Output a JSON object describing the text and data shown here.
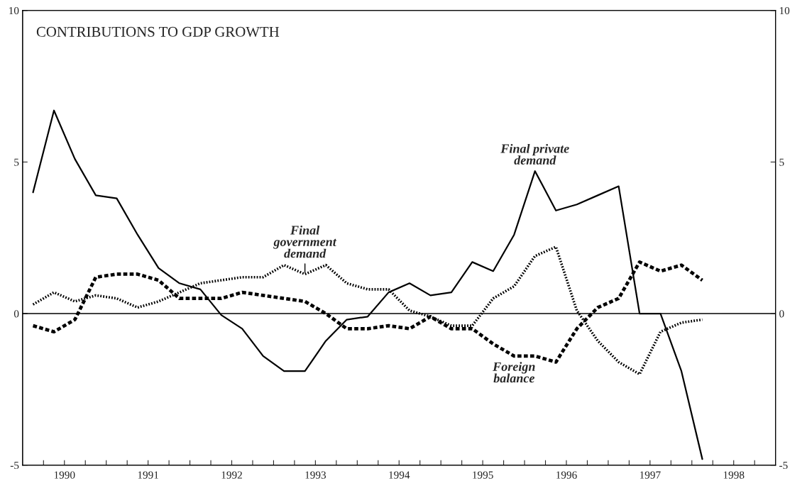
{
  "chart_data": {
    "type": "line",
    "title": "CONTRIBUTIONS TO GDP GROWTH",
    "x": [
      1990.125,
      1990.375,
      1990.625,
      1990.875,
      1991.125,
      1991.375,
      1991.625,
      1991.875,
      1992.125,
      1992.375,
      1992.625,
      1992.875,
      1993.125,
      1993.375,
      1993.625,
      1993.875,
      1994.125,
      1994.375,
      1994.625,
      1994.875,
      1995.125,
      1995.375,
      1995.625,
      1995.875,
      1996.125,
      1996.375,
      1996.625,
      1996.875,
      1997.125,
      1997.375,
      1997.625,
      1997.875,
      1998.125
    ],
    "series": [
      {
        "color": "#000000",
        "line_style": "solid",
        "values": [
          4.0,
          6.7,
          5.1,
          3.9,
          3.8,
          2.6,
          1.5,
          1.0,
          0.8,
          -0.05,
          -0.5,
          -1.4,
          -1.9,
          -1.9,
          -0.9,
          -0.2,
          -0.1,
          0.7,
          1.0,
          0.6,
          0.7,
          1.7,
          1.4,
          2.6,
          4.7,
          3.4,
          3.6,
          3.9,
          4.2,
          0.0,
          0.0,
          -1.9,
          -4.8
        ]
      },
      {
        "color": "#000000",
        "line_style": "dotted",
        "values": [
          0.3,
          0.7,
          0.4,
          0.6,
          0.5,
          0.2,
          0.4,
          0.7,
          1.0,
          1.1,
          1.2,
          1.2,
          1.6,
          1.3,
          1.6,
          1.0,
          0.8,
          0.8,
          0.1,
          -0.1,
          -0.4,
          -0.4,
          0.5,
          0.9,
          1.9,
          2.2,
          0.1,
          -0.9,
          -1.6,
          -2.0,
          -0.6,
          -0.3,
          -0.2
        ]
      },
      {
        "color": "#000000",
        "line_style": "dashed",
        "values": [
          -0.4,
          -0.6,
          -0.2,
          1.2,
          1.3,
          1.3,
          1.1,
          0.5,
          0.5,
          0.5,
          0.7,
          0.6,
          0.5,
          0.4,
          0.0,
          -0.5,
          -0.5,
          -0.4,
          -0.5,
          -0.1,
          -0.5,
          -0.5,
          -1.0,
          -1.4,
          -1.4,
          -1.6,
          -0.5,
          0.2,
          0.5,
          1.7,
          1.4,
          1.6,
          1.1
        ]
      }
    ],
    "annotations": [
      {
        "text": "Final private\ndemand",
        "x": 1996.125,
        "y": 4.7
      },
      {
        "text": "Final\ngovernment\ndemand",
        "x": 1993.375,
        "y": 1.3
      },
      {
        "text": "Foreign\nbalance",
        "x": 1995.875,
        "y": -1.4
      }
    ],
    "ref_lines": [
      {
        "axis": "y",
        "value": 0,
        "color": "#000000",
        "line_style": "solid"
      }
    ],
    "xlim": [
      1990,
      1999
    ],
    "xticks": [
      {
        "value": 1990.25,
        "label": null
      },
      {
        "value": 1990.5,
        "label": "1990"
      },
      {
        "value": 1990.75,
        "label": null
      },
      {
        "value": 1991,
        "label": null
      },
      {
        "value": 1991.25,
        "label": null
      },
      {
        "value": 1991.5,
        "label": "1991"
      },
      {
        "value": 1991.75,
        "label": null
      },
      {
        "value": 1992,
        "label": null
      },
      {
        "value": 1992.25,
        "label": null
      },
      {
        "value": 1992.5,
        "label": "1992"
      },
      {
        "value": 1992.75,
        "label": null
      },
      {
        "value": 1993,
        "label": null
      },
      {
        "value": 1993.25,
        "label": null
      },
      {
        "value": 1993.5,
        "label": "1993"
      },
      {
        "value": 1993.75,
        "label": null
      },
      {
        "value": 1994,
        "label": null
      },
      {
        "value": 1994.25,
        "label": null
      },
      {
        "value": 1994.5,
        "label": "1994"
      },
      {
        "value": 1994.75,
        "label": null
      },
      {
        "value": 1995,
        "label": null
      },
      {
        "value": 1995.25,
        "label": null
      },
      {
        "value": 1995.5,
        "label": "1995"
      },
      {
        "value": 1995.75,
        "label": null
      },
      {
        "value": 1996,
        "label": null
      },
      {
        "value": 1996.25,
        "label": null
      },
      {
        "value": 1996.5,
        "label": "1996"
      },
      {
        "value": 1996.75,
        "label": null
      },
      {
        "value": 1997,
        "label": null
      },
      {
        "value": 1997.25,
        "label": null
      },
      {
        "value": 1997.5,
        "label": "1997"
      },
      {
        "value": 1997.75,
        "label": null
      },
      {
        "value": 1998,
        "label": null
      },
      {
        "value": 1998.25,
        "label": null
      },
      {
        "value": 1998.5,
        "label": "1998"
      },
      {
        "value": 1998.75,
        "label": null
      }
    ],
    "ylim": [
      -5,
      10
    ],
    "yticks": [
      -5,
      0,
      5,
      10
    ],
    "y2lim": [
      -5,
      10
    ],
    "y2ticks": [
      -5,
      0,
      5,
      10
    ],
    "grid": false,
    "legend": false,
    "marker": "none"
  }
}
